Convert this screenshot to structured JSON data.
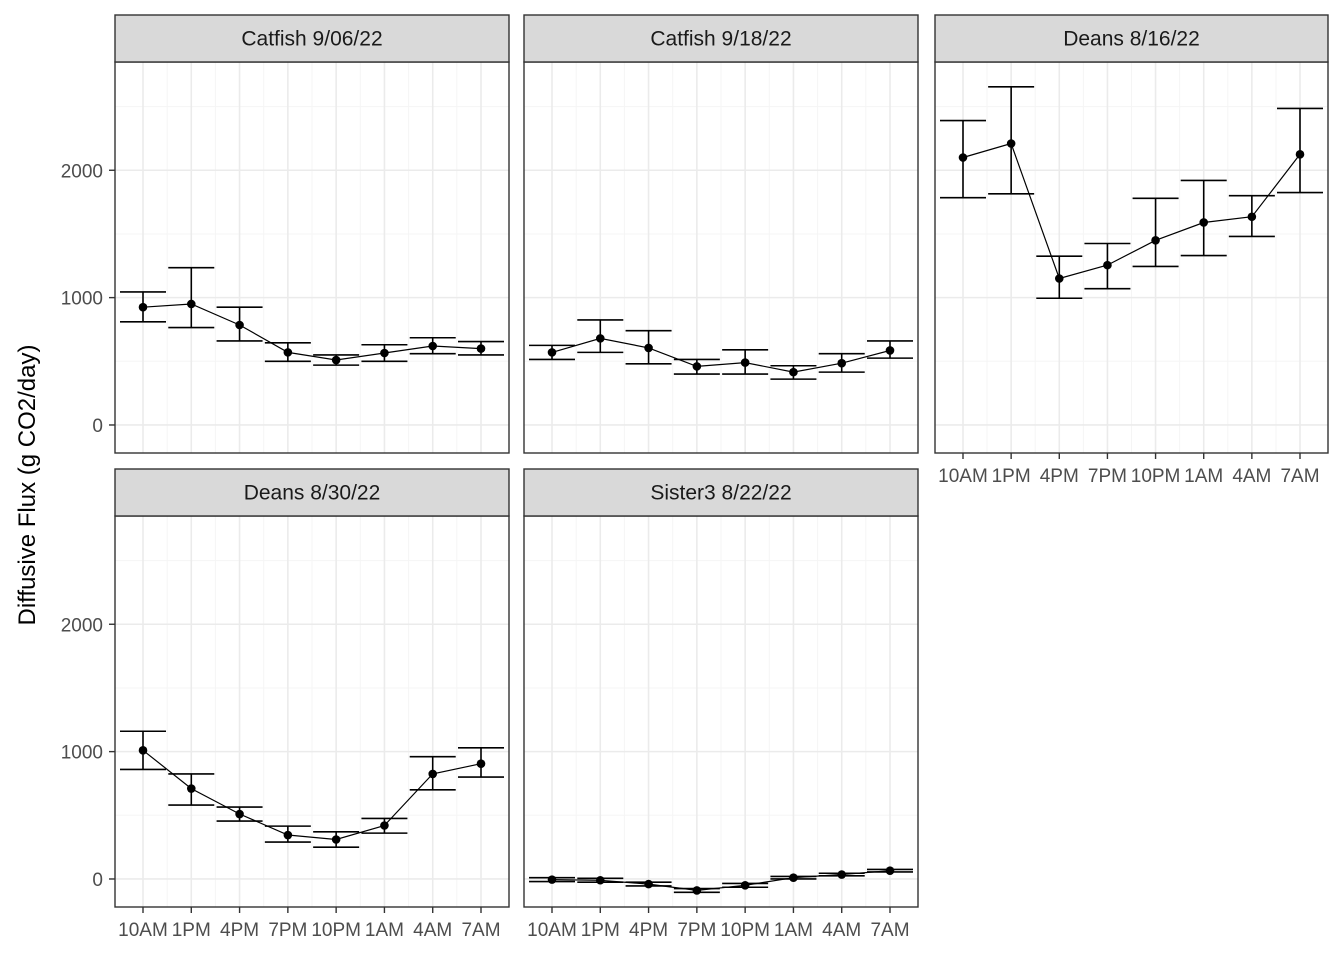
{
  "chart_data": {
    "type": "line",
    "ylabel": "Diffusive Flux (g CO2/day)",
    "xlabel": "",
    "categories": [
      "10AM",
      "1PM",
      "4PM",
      "7PM",
      "10PM",
      "1AM",
      "4AM",
      "7AM"
    ],
    "ylim": [
      -220,
      2850
    ],
    "yticks": [
      0,
      1000,
      2000
    ],
    "grid": true,
    "legend": "none",
    "facets": [
      {
        "title": "Catfish 9/06/22",
        "values": [
          925,
          950,
          785,
          570,
          510,
          565,
          620,
          600
        ],
        "lower": [
          810,
          765,
          660,
          500,
          470,
          500,
          560,
          550
        ],
        "upper": [
          1045,
          1235,
          925,
          645,
          550,
          630,
          685,
          655
        ]
      },
      {
        "title": "Catfish 9/18/22",
        "values": [
          570,
          680,
          605,
          460,
          490,
          415,
          485,
          585
        ],
        "lower": [
          515,
          570,
          480,
          400,
          400,
          360,
          415,
          525
        ],
        "upper": [
          625,
          825,
          740,
          515,
          590,
          465,
          560,
          660
        ]
      },
      {
        "title": "Deans 8/16/22",
        "values": [
          2100,
          2210,
          1150,
          1255,
          1450,
          1590,
          1635,
          2125
        ],
        "lower": [
          1785,
          1815,
          995,
          1070,
          1245,
          1330,
          1480,
          1825
        ],
        "upper": [
          2390,
          2655,
          1325,
          1425,
          1780,
          1920,
          1800,
          2485
        ]
      },
      {
        "title": "Deans 8/30/22",
        "values": [
          1010,
          710,
          510,
          345,
          310,
          420,
          825,
          905
        ],
        "lower": [
          860,
          580,
          455,
          290,
          250,
          360,
          700,
          800
        ],
        "upper": [
          1160,
          825,
          565,
          415,
          370,
          475,
          960,
          1030
        ]
      },
      {
        "title": "Sister3 8/22/22",
        "values": [
          -5,
          -10,
          -40,
          -90,
          -50,
          10,
          35,
          65
        ],
        "lower": [
          -20,
          -25,
          -55,
          -105,
          -65,
          0,
          25,
          55
        ],
        "upper": [
          10,
          5,
          -25,
          -75,
          -35,
          20,
          45,
          75
        ]
      }
    ]
  },
  "colors": {
    "strip_fill": "#d9d9d9",
    "panel_border": "#333333",
    "grid_major": "#ebebeb",
    "grid_minor": "#f5f5f5",
    "series": "#000000"
  }
}
